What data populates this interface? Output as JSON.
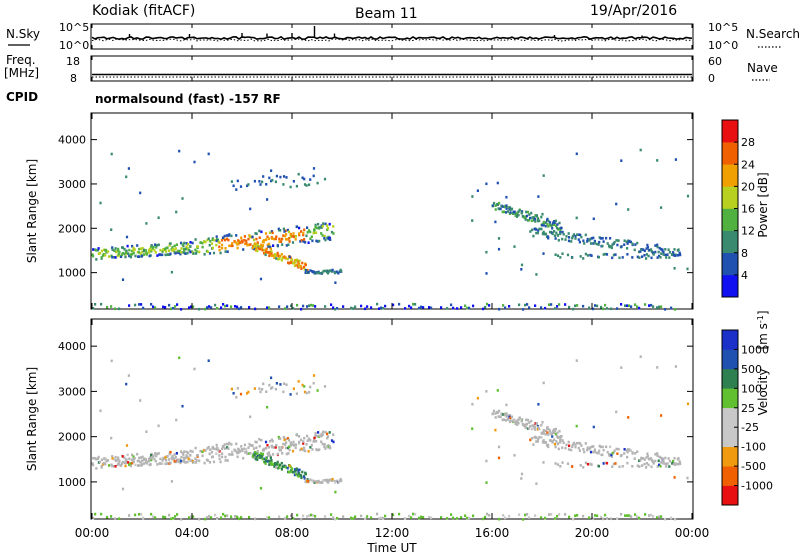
{
  "header": {
    "station": "Kodiak (fitACF)",
    "beam": "Beam 11",
    "date": "19/Apr/2016"
  },
  "sky_panel": {
    "label": "N.Sky",
    "left_ticks": [
      "10^5",
      "10^0"
    ],
    "right_ticks": [
      "10^5",
      "10^0"
    ],
    "right_label": "N.Search"
  },
  "freq_panel": {
    "label_line1": "Freq.",
    "label_line2": "[MHz]",
    "left_ticks": [
      "18",
      "8"
    ],
    "right_ticks": [
      "60",
      "0"
    ],
    "right_label": "Nave",
    "cpid_label": "CPID",
    "cpid_text": "normalsound (fast) -157 RF"
  },
  "x_axis": {
    "label": "Time UT",
    "ticks": [
      "00:00",
      "04:00",
      "08:00",
      "12:00",
      "16:00",
      "20:00",
      "00:00"
    ]
  },
  "colors": {
    "power": [
      "#1010f0",
      "#2050b0",
      "#3a8a70",
      "#50b040",
      "#b8d020",
      "#f0a000",
      "#f06000",
      "#e81010"
    ],
    "velocity": [
      "#e81010",
      "#f06000",
      "#f09a10",
      "#c8c8c8",
      "#c8c8c8",
      "#60c030",
      "#2e8050",
      "#2050b0",
      "#1a30c8"
    ],
    "ground_scatter": "#b4b4b4"
  },
  "chart_data": [
    {
      "type": "line",
      "title": "N.Sky / N.Search",
      "x_range_hours": [
        0,
        24
      ],
      "y_scale": "log",
      "ylim": [
        1,
        100000
      ],
      "note_series": [
        {
          "name": "N.Sky",
          "style": "solid",
          "approx_level": 8
        },
        {
          "name": "N.Search",
          "style": "dotted",
          "approx_level": 6
        }
      ]
    },
    {
      "type": "line",
      "title": "Freq. / Nave",
      "x_range_hours": [
        0,
        24
      ],
      "ylim_left": [
        8,
        18
      ],
      "ylim_right": [
        0,
        60
      ],
      "series": [
        {
          "name": "Freq.",
          "style": "solid",
          "approx_value": 10.5
        },
        {
          "name": "Nave",
          "style": "dotted",
          "approx_value": 9
        }
      ]
    },
    {
      "type": "heatmap",
      "ylabel": "Slant Range [km]",
      "xlabel": "Time UT",
      "xlim_hours": [
        0,
        24
      ],
      "ylim": [
        180,
        4600
      ],
      "yticks": [
        1000,
        2000,
        3000,
        4000
      ],
      "colorbar_label": "Power [dB]",
      "colorbar_ticks": [
        "28",
        "24",
        "20",
        "16",
        "12",
        "8",
        "4"
      ],
      "colorbar_range": [
        0,
        32
      ],
      "echo_regions": [
        {
          "t": [
            0.0,
            9.6
          ],
          "range": [
            1300,
            1650
          ],
          "description_level": "main band"
        },
        {
          "t": [
            4.0,
            8.8
          ],
          "range": [
            1500,
            2050
          ],
          "level_peak_dB": 22
        },
        {
          "t": [
            6.5,
            8.5
          ],
          "range": [
            1050,
            1300
          ],
          "level_peak_dB": 24
        },
        {
          "t": [
            8.5,
            10.0
          ],
          "range": [
            1000,
            1100
          ]
        },
        {
          "t": [
            5.5,
            9.0
          ],
          "range": [
            2800,
            3350
          ]
        },
        {
          "t": [
            16.0,
            18.5
          ],
          "range": [
            2000,
            2700
          ]
        },
        {
          "t": [
            17.5,
            23.5
          ],
          "range": [
            1300,
            2000
          ]
        },
        {
          "t": [
            0.0,
            24.0
          ],
          "range": [
            180,
            300
          ]
        }
      ]
    },
    {
      "type": "heatmap",
      "ylabel": "Slant Range [km]",
      "xlabel": "Time UT",
      "xlim_hours": [
        0,
        24
      ],
      "ylim": [
        180,
        4600
      ],
      "yticks": [
        1000,
        2000,
        3000,
        4000
      ],
      "colorbar_label": "Velocity [m s-1]",
      "colorbar_ticks": [
        "1000",
        "500",
        "100",
        "25",
        "-25",
        "-100",
        "-500",
        "-1000"
      ],
      "echo_regions": [
        {
          "t": [
            0.0,
            9.6
          ],
          "range": [
            1300,
            2050
          ],
          "dominant": "ground scatter"
        },
        {
          "t": [
            6.5,
            8.5
          ],
          "range": [
            1050,
            1300
          ],
          "dominant": "positive"
        },
        {
          "t": [
            16.0,
            23.5
          ],
          "range": [
            1300,
            2700
          ],
          "dominant": "ground scatter"
        }
      ]
    }
  ],
  "y_axis": {
    "label": "Slant Range [km]",
    "ticks": [
      "4000",
      "3000",
      "2000",
      "1000"
    ]
  },
  "power_colorbar": {
    "label": "Power [dB]",
    "ticks": [
      "28",
      "24",
      "20",
      "16",
      "12",
      "8",
      "4"
    ]
  },
  "velocity_colorbar": {
    "label_main": "Velocity",
    "label_unit": "[m s",
    "label_exp": "-1",
    "ticks": [
      "1000",
      "500",
      "100",
      "25",
      "-25",
      "-100",
      "-500",
      "-1000"
    ]
  }
}
